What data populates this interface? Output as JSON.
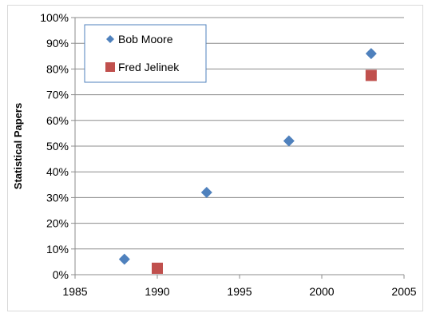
{
  "chart_data": {
    "type": "scatter",
    "title": "",
    "xlabel": "",
    "ylabel": "Statistical Papers",
    "xlim": [
      1985,
      2005
    ],
    "ylim": [
      0,
      1
    ],
    "x_ticks": [
      "1985",
      "1990",
      "1995",
      "2000",
      "2005"
    ],
    "x_tick_values": [
      1985,
      1990,
      1995,
      2000,
      2005
    ],
    "y_ticks": [
      "0%",
      "10%",
      "20%",
      "30%",
      "40%",
      "50%",
      "60%",
      "70%",
      "80%",
      "90%",
      "100%"
    ],
    "y_tick_values": [
      0,
      0.1,
      0.2,
      0.3,
      0.4,
      0.5,
      0.6,
      0.7,
      0.8,
      0.9,
      1.0
    ],
    "grid": "horizontal",
    "legend_position": "top-left",
    "series": [
      {
        "name": "Bob Moore",
        "marker": "diamond",
        "color": "#4f81bd",
        "x": [
          1988,
          1993,
          1998,
          2003
        ],
        "y": [
          0.06,
          0.32,
          0.52,
          0.86
        ]
      },
      {
        "name": "Fred Jelinek",
        "marker": "square",
        "color": "#c0504d",
        "x": [
          1990,
          2003
        ],
        "y": [
          0.025,
          0.775
        ]
      }
    ]
  }
}
